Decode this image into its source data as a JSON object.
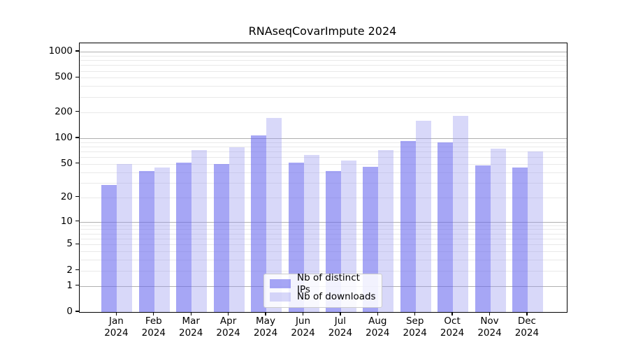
{
  "chart_data": {
    "type": "bar",
    "title": "RNAseqCovarImpute 2024",
    "year_label": "2024",
    "categories": [
      "Jan",
      "Feb",
      "Mar",
      "Apr",
      "May",
      "Jun",
      "Jul",
      "Aug",
      "Sep",
      "Oct",
      "Nov",
      "Dec"
    ],
    "series": [
      {
        "name": "Nb of distinct IPs",
        "color": "rgba(102,102,238,0.58)",
        "values": [
          28,
          41,
          52,
          50,
          107,
          52,
          41,
          46,
          93,
          89,
          48,
          45
        ]
      },
      {
        "name": "Nb of downloads",
        "color": "rgba(153,153,238,0.38)",
        "values": [
          50,
          45,
          72,
          78,
          173,
          64,
          55,
          73,
          158,
          183,
          76,
          70
        ]
      }
    ],
    "xlabel": "",
    "ylabel": "",
    "yscale": "log1p",
    "yticks": [
      0,
      1,
      2,
      5,
      10,
      20,
      50,
      100,
      200,
      500,
      1000
    ],
    "ylim": [
      0,
      1250
    ],
    "grid": true,
    "legend_position": "lower center",
    "colors": {
      "major_grid": "#b0b0b0",
      "minor_grid": "#e9e9e9",
      "axis": "#000000"
    }
  }
}
